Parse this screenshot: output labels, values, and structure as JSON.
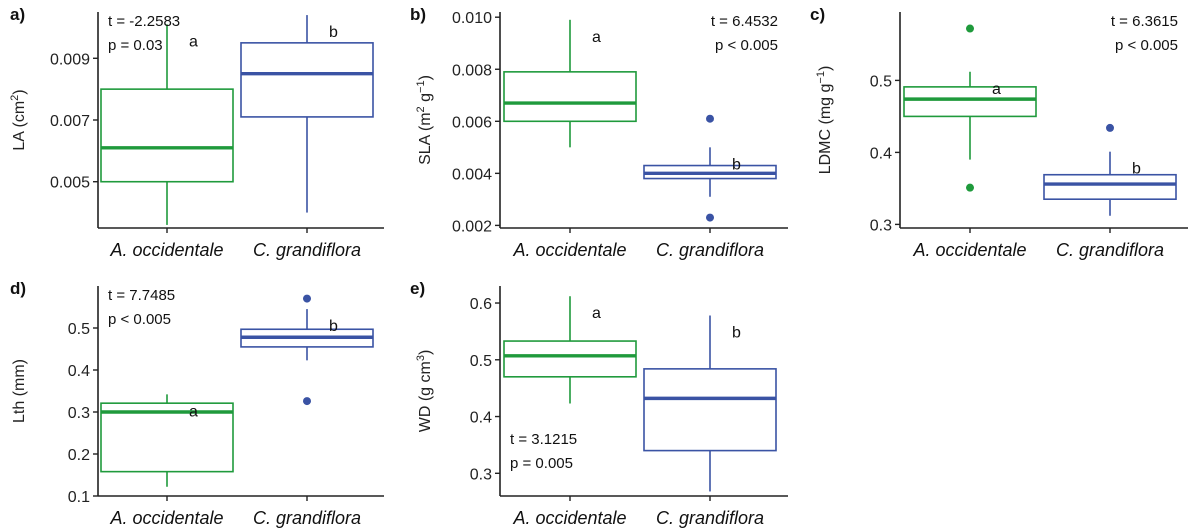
{
  "colors": {
    "green": "#1f9a3c",
    "blue": "#3a53a4",
    "axis": "#222222"
  },
  "chart_data": [
    {
      "type": "box",
      "panel_label": "a)",
      "ylabel": {
        "main": "LA (cm",
        "sup": "2",
        "tail": ")"
      },
      "ylim": [
        0.0035,
        0.0105
      ],
      "yticks": [
        0.005,
        0.007,
        0.009
      ],
      "ytick_labels": [
        "0.005",
        "0.007",
        "0.009"
      ],
      "categories": [
        "A. occidentale",
        "C. grandiflora"
      ],
      "stats": {
        "line1": "t = -2.2583",
        "line2": "p = 0.03",
        "position": "top-left"
      },
      "boxes": [
        {
          "category": "A. occidentale",
          "color": "green",
          "whisker_low": 0.0036,
          "q1": 0.005,
          "median": 0.0061,
          "q3": 0.008,
          "whisker_high": 0.0101,
          "outliers": [],
          "letter": "a"
        },
        {
          "category": "C. grandiflora",
          "color": "blue",
          "whisker_low": 0.004,
          "q1": 0.0071,
          "median": 0.0085,
          "q3": 0.0095,
          "whisker_high": 0.0104,
          "outliers": [],
          "letter": "b"
        }
      ]
    },
    {
      "type": "box",
      "panel_label": "b)",
      "ylabel": {
        "main": "SLA (m",
        "sup": "2",
        "tail": " g",
        "sup2": "−1",
        "tail2": ")"
      },
      "ylim": [
        0.0019,
        0.0102
      ],
      "yticks": [
        0.002,
        0.004,
        0.006,
        0.008,
        0.01
      ],
      "ytick_labels": [
        "0.002",
        "0.004",
        "0.006",
        "0.008",
        "0.010"
      ],
      "categories": [
        "A. occidentale",
        "C. grandiflora"
      ],
      "stats": {
        "line1": "t = 6.4532",
        "line2": "p < 0.005",
        "position": "top-right"
      },
      "boxes": [
        {
          "category": "A. occidentale",
          "color": "green",
          "whisker_low": 0.005,
          "q1": 0.006,
          "median": 0.0067,
          "q3": 0.0079,
          "whisker_high": 0.0099,
          "outliers": [],
          "letter": "a"
        },
        {
          "category": "C. grandiflora",
          "color": "blue",
          "whisker_low": 0.0031,
          "q1": 0.0038,
          "median": 0.004,
          "q3": 0.0043,
          "whisker_high": 0.005,
          "outliers": [
            0.0061,
            0.0023
          ],
          "letter": "b"
        }
      ]
    },
    {
      "type": "box",
      "panel_label": "c)",
      "ylabel": {
        "main": "LDMC (mg g",
        "sup": "−1",
        "tail": ")"
      },
      "ylim": [
        0.295,
        0.595
      ],
      "yticks": [
        0.3,
        0.4,
        0.5
      ],
      "ytick_labels": [
        "0.3",
        "0.4",
        "0.5"
      ],
      "categories": [
        "A. occidentale",
        "C. grandiflora"
      ],
      "stats": {
        "line1": "t = 6.3615",
        "line2": "p < 0.005",
        "position": "top-right"
      },
      "boxes": [
        {
          "category": "A. occidentale",
          "color": "green",
          "whisker_low": 0.39,
          "q1": 0.45,
          "median": 0.474,
          "q3": 0.491,
          "whisker_high": 0.512,
          "outliers": [
            0.572,
            0.351
          ],
          "letter": "a"
        },
        {
          "category": "C. grandiflora",
          "color": "blue",
          "whisker_low": 0.312,
          "q1": 0.335,
          "median": 0.356,
          "q3": 0.369,
          "whisker_high": 0.401,
          "outliers": [
            0.434
          ],
          "letter": "b"
        }
      ]
    },
    {
      "type": "box",
      "panel_label": "d)",
      "ylabel": {
        "main": "Lth (mm)"
      },
      "ylim": [
        0.1,
        0.6
      ],
      "yticks": [
        0.1,
        0.2,
        0.3,
        0.4,
        0.5
      ],
      "ytick_labels": [
        "0.1",
        "0.2",
        "0.3",
        "0.4",
        "0.5"
      ],
      "categories": [
        "A. occidentale",
        "C. grandiflora"
      ],
      "stats": {
        "line1": "t = 7.7485",
        "line2": "p < 0.005",
        "position": "top-left"
      },
      "boxes": [
        {
          "category": "A. occidentale",
          "color": "green",
          "whisker_low": 0.122,
          "q1": 0.158,
          "median": 0.3,
          "q3": 0.321,
          "whisker_high": 0.342,
          "outliers": [],
          "letter": "a"
        },
        {
          "category": "C. grandiflora",
          "color": "blue",
          "whisker_low": 0.423,
          "q1": 0.455,
          "median": 0.478,
          "q3": 0.497,
          "whisker_high": 0.545,
          "outliers": [
            0.57,
            0.326
          ],
          "letter": "b"
        }
      ]
    },
    {
      "type": "box",
      "panel_label": "e)",
      "ylabel": {
        "main": "WD (g cm",
        "sup": "3",
        "tail": ")"
      },
      "ylim": [
        0.26,
        0.63
      ],
      "yticks": [
        0.3,
        0.4,
        0.5,
        0.6
      ],
      "ytick_labels": [
        "0.3",
        "0.4",
        "0.5",
        "0.6"
      ],
      "categories": [
        "A. occidentale",
        "C. grandiflora"
      ],
      "stats": {
        "line1": "t = 3.1215",
        "line2": "p = 0.005",
        "position": "bottom-left"
      },
      "boxes": [
        {
          "category": "A. occidentale",
          "color": "green",
          "whisker_low": 0.423,
          "q1": 0.47,
          "median": 0.507,
          "q3": 0.533,
          "whisker_high": 0.612,
          "outliers": [],
          "letter": "a"
        },
        {
          "category": "C. grandiflora",
          "color": "blue",
          "whisker_low": 0.268,
          "q1": 0.34,
          "median": 0.432,
          "q3": 0.484,
          "whisker_high": 0.578,
          "outliers": [],
          "letter": "b"
        }
      ]
    }
  ]
}
